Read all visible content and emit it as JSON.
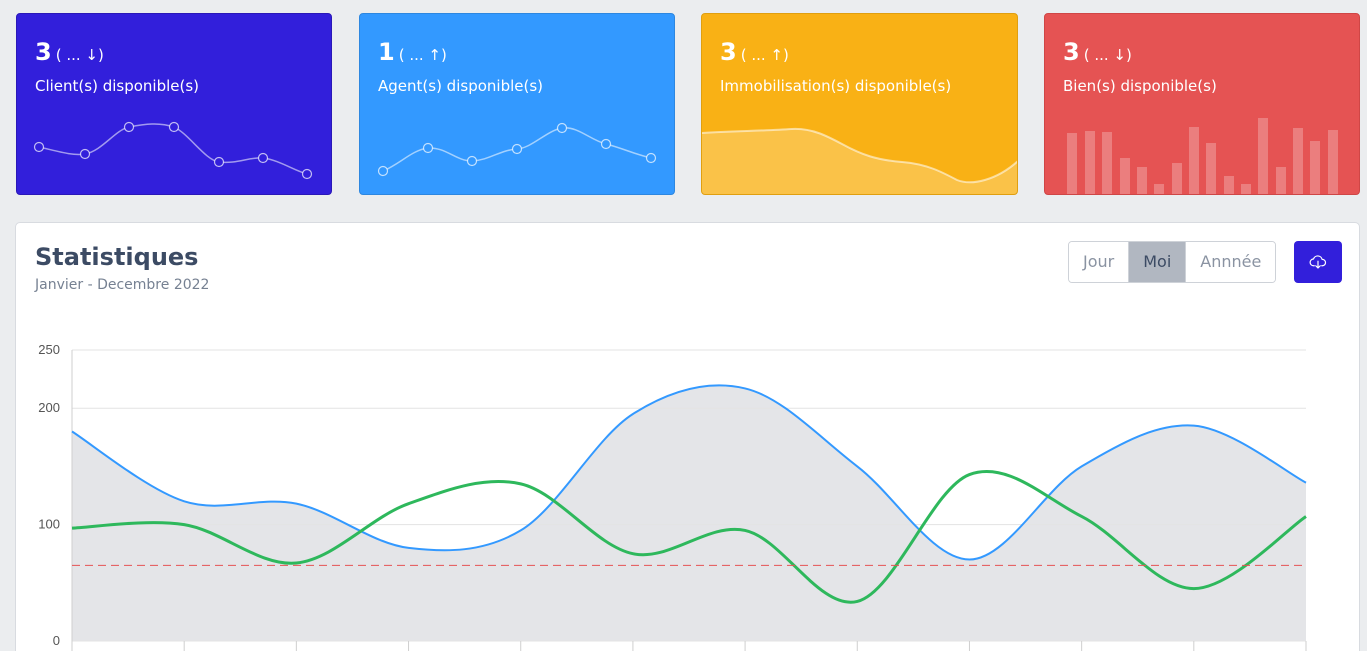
{
  "cards": [
    {
      "value": "3",
      "trend": "( ... ↓)",
      "label": "Client(s) disponible(s)",
      "color": "#321fdb"
    },
    {
      "value": "1",
      "trend": "( ... ↑)",
      "label": "Agent(s) disponible(s)",
      "color": "#3399ff"
    },
    {
      "value": "3",
      "trend": "( ... ↑)",
      "label": "Immobilisation(s) disponible(s)",
      "color": "#f9b115"
    },
    {
      "value": "3",
      "trend": "( ... ↓)",
      "label": "Bien(s) disponible(s)",
      "color": "#e55353"
    }
  ],
  "stats": {
    "title": "Statistiques",
    "subtitle": "Janvier - Decembre 2022",
    "periods": [
      "Jour",
      "Moi",
      "Annnée"
    ],
    "active_period": "Moi",
    "download_icon": "cloud-download-icon"
  },
  "chart_data": {
    "type": "line",
    "ylim": [
      0,
      250
    ],
    "yticks": [
      0,
      100,
      200,
      250
    ],
    "grid": true,
    "x": [
      0,
      1,
      2,
      3,
      4,
      5,
      6,
      7,
      8,
      9,
      10,
      11
    ],
    "series": [
      {
        "color": "#3399ff",
        "fill": "#e4e5e8",
        "values": [
          180,
          120,
          118,
          80,
          95,
          195,
          217,
          150,
          70,
          150,
          185,
          136
        ]
      },
      {
        "color": "#2eb85c",
        "values": [
          97,
          100,
          67,
          118,
          135,
          75,
          95,
          34,
          143,
          107,
          45,
          107
        ]
      },
      {
        "color": "#e55353",
        "dashed": true,
        "values": [
          65,
          65,
          65,
          65,
          65,
          65,
          65,
          65,
          65,
          65,
          65,
          65
        ]
      }
    ]
  }
}
